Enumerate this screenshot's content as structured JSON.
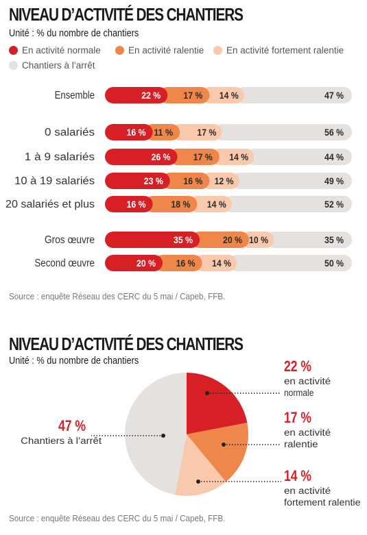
{
  "chart_data": [
    {
      "type": "bar",
      "orientation": "horizontal-stacked-100",
      "title": "NIVEAU D’ACTIVITÉ DES CHANTIERS",
      "subtitle": "Unité : % du nombre de chantiers",
      "legend": [
        "En activité normale",
        "En activité ralentie",
        "En activité fortement ralentie",
        "Chantiers à l’arrêt"
      ],
      "categories": [
        "Ensemble",
        "0 salariés",
        "1 à 9 salariés",
        "10 à 19 salariés",
        "20 salariés et plus",
        "Gros œuvre",
        "Second œuvre"
      ],
      "series": [
        {
          "name": "En activité normale",
          "values": [
            22,
            16,
            26,
            23,
            16,
            35,
            20
          ]
        },
        {
          "name": "En activité ralentie",
          "values": [
            17,
            11,
            17,
            16,
            18,
            20,
            16
          ]
        },
        {
          "name": "En activité fortement ralentie",
          "values": [
            14,
            17,
            14,
            12,
            14,
            10,
            14
          ]
        },
        {
          "name": "Chantiers à l’arrêt",
          "values": [
            47,
            56,
            44,
            49,
            52,
            35,
            50
          ]
        }
      ],
      "groups": [
        [
          0
        ],
        [
          1,
          2,
          3,
          4
        ],
        [
          5,
          6
        ]
      ],
      "unit": "%",
      "source": "Source : enquête Réseau des CERC du 5 mai / Capeb, FFB."
    },
    {
      "type": "pie",
      "title": "NIVEAU D’ACTIVITÉ DES CHANTIERS",
      "subtitle": "Unité : % du nombre de chantiers",
      "slices": [
        {
          "value": 22,
          "pct_label": "22 %",
          "label_lines": [
            "en activité",
            "normale"
          ]
        },
        {
          "value": 17,
          "pct_label": "17 %",
          "label_lines": [
            "en activité",
            "ralentie"
          ]
        },
        {
          "value": 14,
          "pct_label": "14 %",
          "label_lines": [
            "en activité",
            "fortement ralentie"
          ]
        },
        {
          "value": 47,
          "pct_label": "47 %",
          "label_lines": [
            "Chantiers à l’arrêt"
          ]
        }
      ],
      "source": "Source : enquête Réseau des CERC du 5 mai / Capeb, FFB."
    }
  ],
  "colors": {
    "normale": "#d72026",
    "ralentie": "#f0874a",
    "fortement": "#f8c9ad",
    "arret": "#e4e1df",
    "label_dark": "#2b2b2b",
    "label_light": "#ffffff",
    "pct_red": "#d72026"
  }
}
